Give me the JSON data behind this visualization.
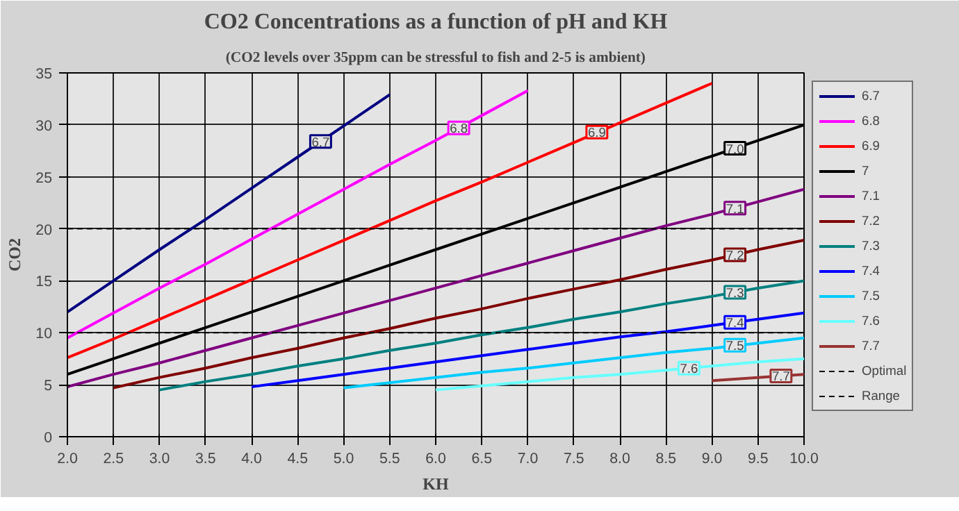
{
  "chart_data": {
    "type": "line",
    "title": "CO2 Concentrations as a function of pH and KH",
    "subtitle": "(CO2 levels over 35ppm can be stressful to fish and 2-5 is ambient)",
    "xlabel": "KH",
    "ylabel": "CO2",
    "xlim": [
      2,
      10
    ],
    "xticks": [
      {
        "value": 2,
        "label": "2.0"
      },
      {
        "value": 2.5,
        "label": "2.5"
      },
      {
        "value": 3,
        "label": "3.0"
      },
      {
        "value": 3.5,
        "label": "3.5"
      },
      {
        "value": 4,
        "label": "4.0"
      },
      {
        "value": 4.5,
        "label": "4.5"
      },
      {
        "value": 5,
        "label": "5.0"
      },
      {
        "value": 5.5,
        "label": "5.5"
      },
      {
        "value": 6,
        "label": "6.0"
      },
      {
        "value": 6.5,
        "label": "6.5"
      },
      {
        "value": 7,
        "label": "7.0"
      },
      {
        "value": 7.5,
        "label": "7.5"
      },
      {
        "value": 8,
        "label": "8.0"
      },
      {
        "value": 8.5,
        "label": "8.5"
      },
      {
        "value": 9,
        "label": "9.0"
      },
      {
        "value": 9.5,
        "label": "9.5"
      },
      {
        "value": 10,
        "label": "10.0"
      }
    ],
    "ylim": [
      0,
      35
    ],
    "yticks": [
      0,
      5,
      10,
      15,
      20,
      25,
      30,
      35
    ],
    "grid": true,
    "legend": "right",
    "marker": "none",
    "series": [
      {
        "name": "6.7",
        "color": "#000080",
        "x": [
          2,
          2.5,
          3,
          3.5,
          4,
          4.5,
          5,
          5.5
        ],
        "values": [
          12.0,
          15.0,
          18.0,
          20.9,
          23.9,
          26.9,
          29.9,
          32.9
        ]
      },
      {
        "name": "6.8",
        "color": "#ff00ff",
        "x": [
          2,
          2.5,
          3,
          3.5,
          4,
          4.5,
          5,
          5.5,
          6,
          6.5,
          7
        ],
        "values": [
          9.5,
          11.9,
          14.3,
          16.6,
          19.0,
          21.4,
          23.8,
          26.2,
          28.5,
          30.9,
          33.3
        ]
      },
      {
        "name": "6.9",
        "color": "#ff0000",
        "x": [
          2,
          2.5,
          3,
          3.5,
          4,
          4.5,
          5,
          5.5,
          6,
          6.5,
          7,
          7.5,
          8,
          8.5,
          9
        ],
        "values": [
          7.6,
          9.4,
          11.3,
          13.2,
          15.1,
          17.0,
          18.9,
          20.8,
          22.7,
          24.5,
          26.4,
          28.3,
          30.2,
          32.1,
          34.0
        ]
      },
      {
        "name": "7",
        "color": "#000000",
        "x": [
          2,
          2.5,
          3,
          3.5,
          4,
          4.5,
          5,
          5.5,
          6,
          6.5,
          7,
          7.5,
          8,
          8.5,
          9,
          9.5,
          10
        ],
        "values": [
          6.0,
          7.5,
          9.0,
          10.5,
          12.0,
          13.5,
          15.0,
          16.5,
          18.0,
          19.5,
          21.0,
          22.5,
          24.0,
          25.5,
          27.0,
          28.5,
          30.0
        ]
      },
      {
        "name": "7.1",
        "color": "#800080",
        "x": [
          2,
          2.5,
          3,
          3.5,
          4,
          4.5,
          5,
          5.5,
          6,
          6.5,
          7,
          7.5,
          8,
          8.5,
          9,
          9.5,
          10
        ],
        "values": [
          4.8,
          6.0,
          7.1,
          8.3,
          9.5,
          10.7,
          11.9,
          13.1,
          14.3,
          15.5,
          16.7,
          17.9,
          19.1,
          20.3,
          21.4,
          22.6,
          23.8
        ]
      },
      {
        "name": "7.2",
        "color": "#800000",
        "x": [
          2.5,
          3,
          3.5,
          4,
          4.5,
          5,
          5.5,
          6,
          6.5,
          7,
          7.5,
          8,
          8.5,
          9,
          9.5,
          10
        ],
        "values": [
          4.7,
          5.7,
          6.6,
          7.6,
          8.5,
          9.5,
          10.4,
          11.4,
          12.3,
          13.3,
          14.2,
          15.1,
          16.1,
          17.0,
          18.0,
          18.9
        ]
      },
      {
        "name": "7.3",
        "color": "#008080",
        "x": [
          3,
          3.5,
          4,
          4.5,
          5,
          5.5,
          6,
          6.5,
          7,
          7.5,
          8,
          8.5,
          9,
          9.5,
          10
        ],
        "values": [
          4.5,
          5.3,
          6.0,
          6.8,
          7.5,
          8.3,
          9.0,
          9.8,
          10.5,
          11.3,
          12.0,
          12.8,
          13.5,
          14.3,
          15.0
        ]
      },
      {
        "name": "7.4",
        "color": "#0000ff",
        "x": [
          4,
          4.5,
          5,
          5.5,
          6,
          6.5,
          7,
          7.5,
          8,
          8.5,
          9,
          9.5,
          10
        ],
        "values": [
          4.8,
          5.4,
          6.0,
          6.6,
          7.2,
          7.8,
          8.4,
          9.0,
          9.6,
          10.1,
          10.7,
          11.3,
          11.9
        ]
      },
      {
        "name": "7.5",
        "color": "#00ccff",
        "x": [
          5,
          5.5,
          6,
          6.5,
          7,
          7.5,
          8,
          8.5,
          9,
          9.5,
          10
        ],
        "values": [
          4.7,
          5.2,
          5.7,
          6.2,
          6.6,
          7.1,
          7.6,
          8.1,
          8.5,
          9.0,
          9.5
        ]
      },
      {
        "name": "7.6",
        "color": "#66ffff",
        "x": [
          6,
          6.5,
          7,
          7.5,
          8,
          8.5,
          9,
          9.5,
          10
        ],
        "values": [
          4.5,
          4.9,
          5.3,
          5.7,
          6.0,
          6.4,
          6.8,
          7.2,
          7.5
        ]
      },
      {
        "name": "7.7",
        "color": "#993333",
        "x": [
          9,
          9.5,
          10
        ],
        "values": [
          5.4,
          5.7,
          6.0
        ]
      },
      {
        "name": "Optimal",
        "color": "#000000",
        "line_style": "dashed",
        "x": [
          2,
          10
        ],
        "values": [
          20,
          20
        ]
      },
      {
        "name": "Range",
        "color": "#000000",
        "line_style": "dashed",
        "x": [
          2,
          10
        ],
        "values": [
          10,
          10
        ]
      }
    ],
    "annotations": [
      {
        "text": "6.7",
        "x": 4.75,
        "y": 28.4
      },
      {
        "text": "6.8",
        "x": 6.25,
        "y": 29.7
      },
      {
        "text": "6.9",
        "x": 7.75,
        "y": 29.3
      },
      {
        "text": "7.0",
        "x": 9.25,
        "y": 27.75
      },
      {
        "text": "7.1",
        "x": 9.25,
        "y": 22.0
      },
      {
        "text": "7.2",
        "x": 9.25,
        "y": 17.5
      },
      {
        "text": "7.3",
        "x": 9.25,
        "y": 13.9
      },
      {
        "text": "7.4",
        "x": 9.25,
        "y": 11.0
      },
      {
        "text": "7.5",
        "x": 9.25,
        "y": 8.8
      },
      {
        "text": "7.6",
        "x": 8.75,
        "y": 6.6
      },
      {
        "text": "7.7",
        "x": 9.75,
        "y": 5.85
      }
    ]
  }
}
